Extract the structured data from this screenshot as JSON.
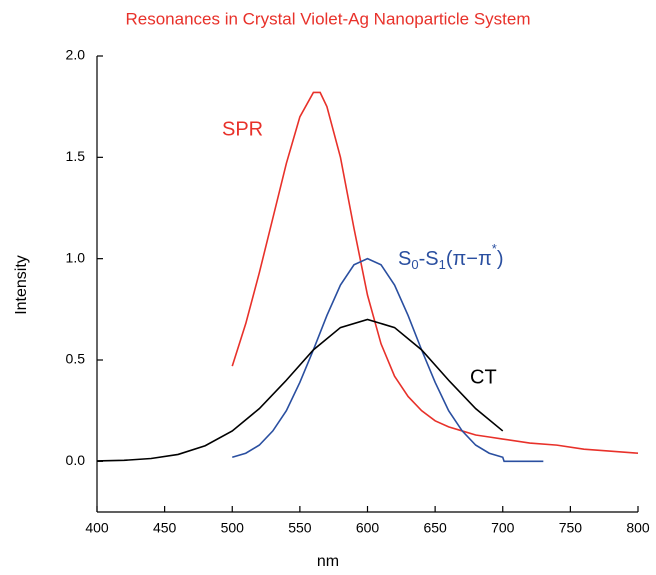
{
  "chart_data": {
    "type": "line",
    "title": "Resonances in Crystal Violet-Ag Nanoparticle System",
    "title_color": "#e8312a",
    "x_label": "nm",
    "y_label": "Intensity",
    "xlim": [
      400,
      800
    ],
    "xticks": [
      400,
      450,
      500,
      550,
      600,
      650,
      700,
      750,
      800
    ],
    "ylim": [
      -0.25,
      2.0
    ],
    "yticks": [
      {
        "value": 0,
        "label": "0.0"
      },
      {
        "value": 0.5,
        "label": "0.5"
      },
      {
        "value": 1,
        "label": "1.0"
      },
      {
        "value": 1.5,
        "label": "1.5"
      },
      {
        "value": 2,
        "label": "2.0"
      }
    ],
    "series": [
      {
        "color": "#e8312a",
        "x": [
          500,
          510,
          520,
          530,
          540,
          550,
          560,
          565,
          570,
          580,
          590,
          600,
          610,
          620,
          630,
          640,
          650,
          660,
          670,
          680,
          690,
          700,
          720,
          740,
          760,
          780,
          800
        ],
        "values": [
          0.47,
          0.68,
          0.93,
          1.2,
          1.47,
          1.7,
          1.82,
          1.82,
          1.75,
          1.5,
          1.15,
          0.82,
          0.58,
          0.42,
          0.32,
          0.25,
          0.2,
          0.17,
          0.15,
          0.13,
          0.12,
          0.11,
          0.09,
          0.08,
          0.06,
          0.05,
          0.04
        ]
      },
      {
        "color": "#2a4fa0",
        "x": [
          500,
          510,
          520,
          530,
          540,
          550,
          560,
          570,
          580,
          590,
          600,
          610,
          620,
          630,
          640,
          650,
          660,
          670,
          680,
          690,
          700,
          701,
          730
        ],
        "values": [
          0.02,
          0.04,
          0.08,
          0.15,
          0.25,
          0.39,
          0.55,
          0.72,
          0.87,
          0.97,
          1.0,
          0.97,
          0.87,
          0.72,
          0.55,
          0.39,
          0.25,
          0.15,
          0.08,
          0.04,
          0.02,
          0,
          0
        ]
      },
      {
        "color": "#000000",
        "x": [
          400,
          420,
          440,
          460,
          480,
          500,
          520,
          540,
          560,
          580,
          600,
          620,
          640,
          660,
          680,
          700
        ],
        "values": [
          0.002,
          0.005,
          0.014,
          0.034,
          0.077,
          0.15,
          0.26,
          0.4,
          0.55,
          0.66,
          0.7,
          0.66,
          0.55,
          0.4,
          0.26,
          0.15
        ]
      }
    ],
    "annotations": [
      {
        "text": "SPR",
        "color": "#e8312a"
      },
      {
        "parts": [
          "S",
          "0",
          "-S",
          "1",
          "(π−π",
          "*",
          ")"
        ],
        "color": "#2a4fa0"
      },
      {
        "text": "CT",
        "color": "#000000"
      }
    ]
  }
}
